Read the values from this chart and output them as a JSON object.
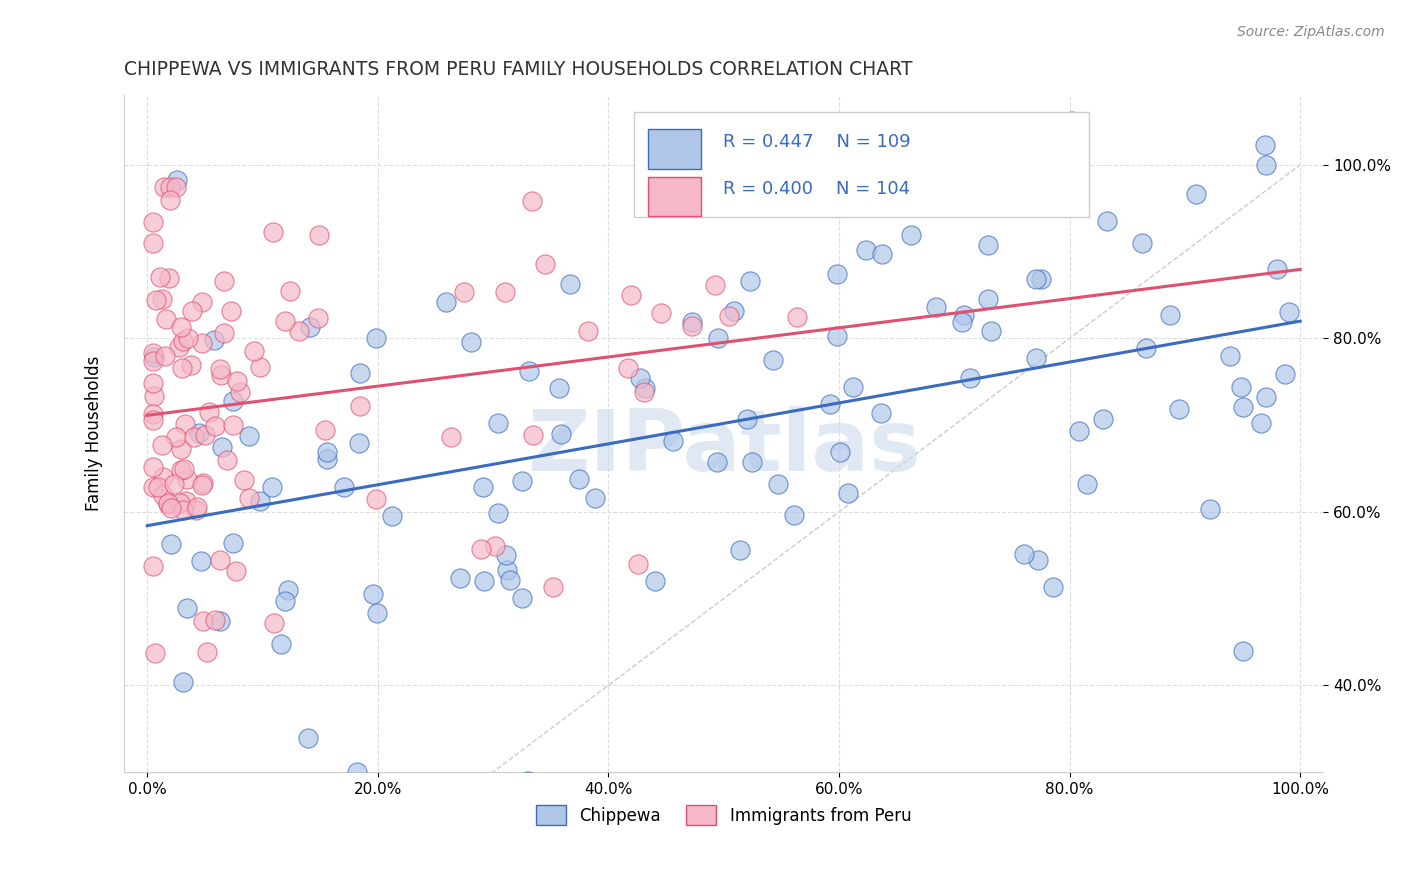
{
  "title": "CHIPPEWA VS IMMIGRANTS FROM PERU FAMILY HOUSEHOLDS CORRELATION CHART",
  "source_text": "Source: ZipAtlas.com",
  "ylabel": "Family Households",
  "legend_labels": [
    "Chippewa",
    "Immigrants from Peru"
  ],
  "blue_R": 0.447,
  "blue_N": 109,
  "pink_R": 0.4,
  "pink_N": 104,
  "blue_color": "#aec6e8",
  "blue_line_color": "#3a6bbf",
  "pink_color": "#f4b8c8",
  "pink_line_color": "#e05070",
  "diag_line_color": "#cccccc",
  "background_color": "#ffffff",
  "grid_color": "#dddddd",
  "title_color": "#333333",
  "legend_text_color": "#3a6bbf",
  "watermark_color": "#c8d8ea"
}
